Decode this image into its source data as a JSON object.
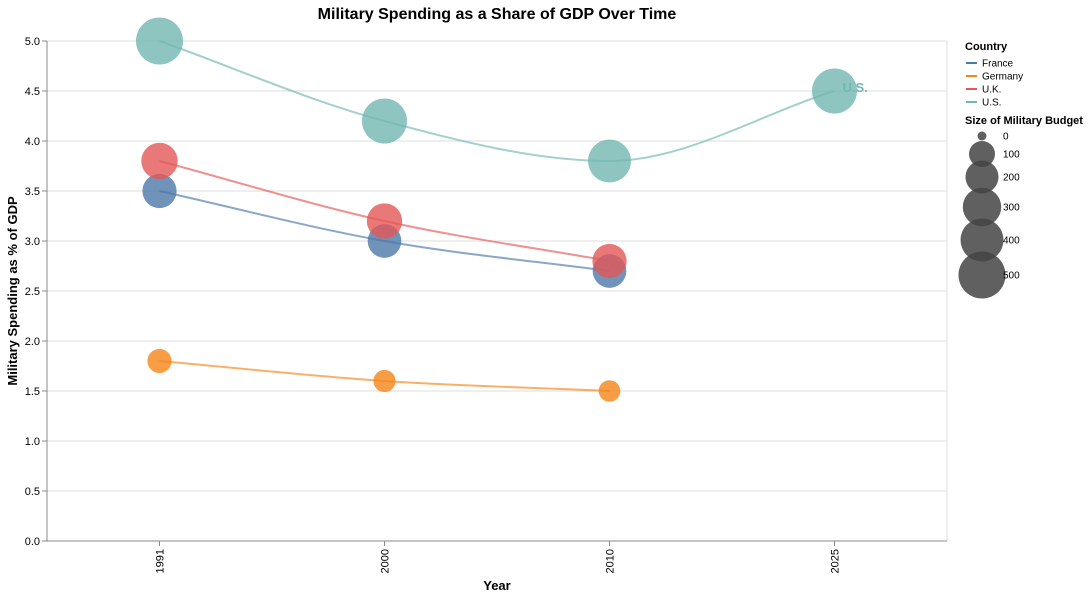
{
  "chart_data": {
    "type": "line",
    "title": "Military Spending as a Share of GDP Over Time",
    "xlabel": "Year",
    "ylabel": "Military Spending as % of GDP",
    "categories": [
      "1991",
      "2000",
      "2010",
      "2025"
    ],
    "ylim": [
      0,
      5
    ],
    "y_ticks": [
      "0.0",
      "0.5",
      "1.0",
      "1.5",
      "2.0",
      "2.5",
      "3.0",
      "3.5",
      "4.0",
      "4.5",
      "5.0"
    ],
    "grid": true,
    "interpolation": "monotone",
    "legend_position": "right",
    "color_legend": {
      "title": "Country",
      "entries": [
        "France",
        "Germany",
        "U.K.",
        "U.S."
      ]
    },
    "size_legend": {
      "title": "Size of Military Budget",
      "entries": [
        "0",
        "100",
        "200",
        "300",
        "400",
        "500"
      ],
      "values": [
        0,
        100,
        200,
        300,
        400,
        500
      ]
    },
    "series": [
      {
        "name": "France",
        "color": "#4c78a8",
        "points": [
          {
            "x": "1991",
            "y": 3.5,
            "size": 220
          },
          {
            "x": "2000",
            "y": 3.0,
            "size": 210
          },
          {
            "x": "2010",
            "y": 2.7,
            "size": 210
          }
        ]
      },
      {
        "name": "Germany",
        "color": "#f58518",
        "points": [
          {
            "x": "1991",
            "y": 1.8,
            "size": 80
          },
          {
            "x": "2000",
            "y": 1.6,
            "size": 60
          },
          {
            "x": "2010",
            "y": 1.5,
            "size": 55
          }
        ]
      },
      {
        "name": "U.K.",
        "color": "#e45756",
        "points": [
          {
            "x": "1991",
            "y": 3.8,
            "size": 260
          },
          {
            "x": "2000",
            "y": 3.2,
            "size": 240
          },
          {
            "x": "2010",
            "y": 2.8,
            "size": 220
          }
        ]
      },
      {
        "name": "U.S.",
        "color": "#72b7b2",
        "end_label": "U.S.",
        "points": [
          {
            "x": "1991",
            "y": 5.0,
            "size": 500
          },
          {
            "x": "2000",
            "y": 4.2,
            "size": 450
          },
          {
            "x": "2010",
            "y": 3.8,
            "size": 400
          },
          {
            "x": "2025",
            "y": 4.5,
            "size": 450
          }
        ]
      }
    ]
  }
}
